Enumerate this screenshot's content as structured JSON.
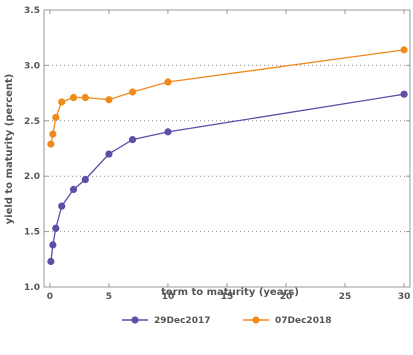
{
  "chart_data": {
    "type": "line",
    "title": "",
    "xlabel": "term to maturity (years)",
    "ylabel": "yield to maturity (percent)",
    "xlim": [
      -0.5,
      30.5
    ],
    "ylim": [
      1.0,
      3.5
    ],
    "xticks": [
      0,
      5,
      10,
      15,
      20,
      25,
      30
    ],
    "yticks": [
      1.0,
      1.5,
      2.0,
      2.5,
      3.0,
      3.5
    ],
    "grid": "horizontal dotted",
    "legend_position": "bottom",
    "series": [
      {
        "name": "29Dec2017",
        "color": "#5b4fa8",
        "x": [
          0.083,
          0.25,
          0.5,
          1,
          2,
          3,
          5,
          7,
          10,
          30
        ],
        "y": [
          1.23,
          1.38,
          1.53,
          1.73,
          1.88,
          1.97,
          2.2,
          2.33,
          2.4,
          2.74
        ]
      },
      {
        "name": "07Dec2018",
        "color": "#f08a1c",
        "x": [
          0.083,
          0.25,
          0.5,
          1,
          2,
          3,
          5,
          7,
          10,
          30
        ],
        "y": [
          2.29,
          2.38,
          2.53,
          2.67,
          2.71,
          2.71,
          2.69,
          2.76,
          2.85,
          3.14
        ]
      }
    ]
  }
}
